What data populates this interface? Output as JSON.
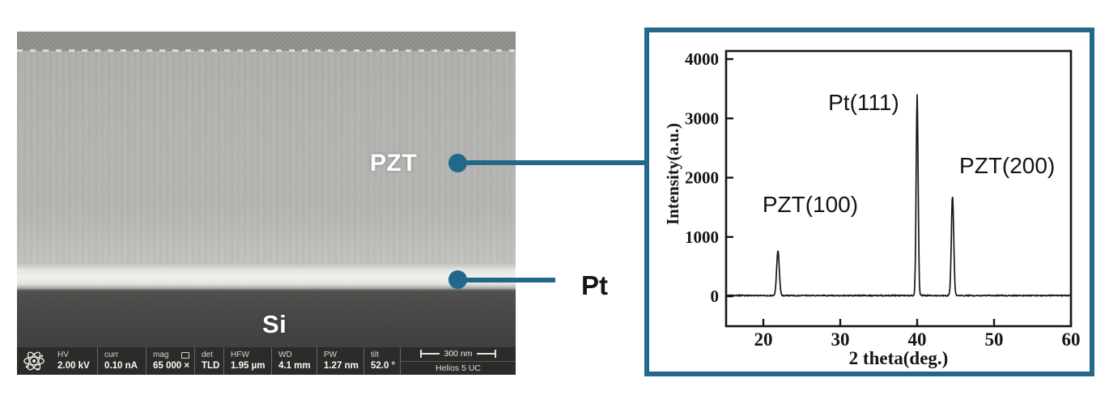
{
  "colors": {
    "accent": "#21688a",
    "chart_line": "#161616",
    "sem_bar_bg": "#2b2b29"
  },
  "sem": {
    "labels": {
      "pzt": "PZT",
      "pt": "Pt",
      "si": "Si"
    },
    "info_bar": {
      "fields": [
        {
          "label": "HV",
          "value": "2.00 kV"
        },
        {
          "label": "curr",
          "value": "0.10 nA"
        },
        {
          "label": "mag",
          "value": "65 000 ×",
          "icon": "display-icon"
        },
        {
          "label": "det",
          "value": "TLD"
        },
        {
          "label": "HFW",
          "value": "1.95 µm"
        },
        {
          "label": "WD",
          "value": "4.1 mm"
        },
        {
          "label": "PW",
          "value": "1.27 nm"
        },
        {
          "label": "tilt",
          "value": "52.0 °"
        }
      ],
      "scale_bar_label": "300 nm",
      "instrument": "Helios 5 UC"
    }
  },
  "chart_data": {
    "type": "line",
    "title": "",
    "xlabel": "2 theta(deg.)",
    "ylabel": "Intensity(a.u.)",
    "xlim": [
      15.2,
      60
    ],
    "ylim": [
      -500,
      4140
    ],
    "x_ticks": [
      20,
      30,
      40,
      50,
      60
    ],
    "y_ticks": [
      0,
      1000,
      2000,
      3000,
      4000
    ],
    "grid": false,
    "legend": false,
    "baseline": 12,
    "peaks": [
      {
        "label": "PZT(100)",
        "two_theta": 21.9,
        "intensity": 760,
        "width": 0.4
      },
      {
        "label": "Pt(111)",
        "two_theta": 40.0,
        "intensity": 3390,
        "width": 0.3
      },
      {
        "label": "PZT(200)",
        "two_theta": 44.6,
        "intensity": 1680,
        "width": 0.36
      }
    ],
    "annotations": [
      {
        "text": "PZT(100)",
        "x": 26.1,
        "y": 1420
      },
      {
        "text": "Pt(111)",
        "x": 33.05,
        "y": 3140
      },
      {
        "text": "PZT(200)",
        "x": 51.7,
        "y": 2075
      }
    ]
  }
}
